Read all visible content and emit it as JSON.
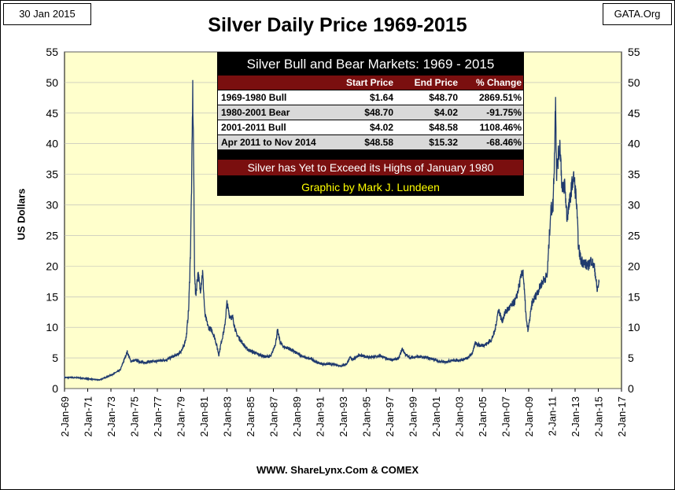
{
  "header": {
    "date": "30 Jan 2015",
    "site": "GATA.Org",
    "title": "Silver Daily Price 1969-2015"
  },
  "footer": {
    "source": "WWW. ShareLynx.Com & COMEX"
  },
  "colors": {
    "plot_bg": "#ffffcc",
    "line": "#1f3a6e",
    "table_header": "#7a0f0f",
    "row_light": "#ffffff",
    "row_gray": "#d9d9d9",
    "credit_text": "#ffff00"
  },
  "table": {
    "title": "Silver Bull and Bear Markets: 1969 - 2015",
    "columns": [
      "",
      "Start Price",
      "End Price",
      "% Change"
    ],
    "rows": [
      [
        "1969-1980 Bull",
        "$1.64",
        "$48.70",
        "2869.51%"
      ],
      [
        "1980-2001 Bear",
        "$48.70",
        "$4.02",
        "-91.75%"
      ],
      [
        "2001-2011 Bull",
        "$4.02",
        "$48.58",
        "1108.46%"
      ],
      [
        "Apr 2011 to Nov 2014",
        "$48.58",
        "$15.32",
        "-68.46%"
      ]
    ],
    "note": "Silver has Yet to Exceed its Highs of January 1980",
    "credit": "Graphic by Mark J. Lundeen"
  },
  "chart_data": {
    "type": "line",
    "title": "Silver Daily Price 1969-2015",
    "xlabel": "",
    "ylabel": "US Dollars",
    "xlim": [
      1969,
      2017
    ],
    "ylim": [
      0,
      55
    ],
    "y_ticks": [
      0,
      5,
      10,
      15,
      20,
      25,
      30,
      35,
      40,
      45,
      50,
      55
    ],
    "x_tick_labels": [
      "2-Jan-69",
      "2-Jan-71",
      "2-Jan-73",
      "2-Jan-75",
      "2-Jan-77",
      "2-Jan-79",
      "2-Jan-81",
      "2-Jan-83",
      "2-Jan-85",
      "2-Jan-87",
      "2-Jan-89",
      "2-Jan-91",
      "2-Jan-93",
      "2-Jan-95",
      "2-Jan-97",
      "2-Jan-99",
      "2-Jan-01",
      "2-Jan-03",
      "2-Jan-05",
      "2-Jan-07",
      "2-Jan-09",
      "2-Jan-11",
      "2-Jan-13",
      "2-Jan-15",
      "2-Jan-17"
    ],
    "x_tick_years": [
      1969,
      1971,
      1973,
      1975,
      1977,
      1979,
      1981,
      1983,
      1985,
      1987,
      1989,
      1991,
      1993,
      1995,
      1997,
      1999,
      2001,
      2003,
      2005,
      2007,
      2009,
      2011,
      2013,
      2015,
      2017
    ],
    "series": [
      {
        "name": "Silver Daily Price",
        "x": [
          1969.0,
          1970.0,
          1971.0,
          1972.0,
          1972.8,
          1973.3,
          1973.8,
          1974.1,
          1974.4,
          1974.7,
          1975.2,
          1975.8,
          1976.3,
          1976.8,
          1977.3,
          1977.8,
          1978.3,
          1978.8,
          1979.2,
          1979.5,
          1979.7,
          1979.85,
          1979.95,
          1980.05,
          1980.12,
          1980.2,
          1980.3,
          1980.5,
          1980.7,
          1980.9,
          1981.1,
          1981.4,
          1981.7,
          1982.0,
          1982.3,
          1982.5,
          1982.8,
          1983.0,
          1983.2,
          1983.5,
          1983.8,
          1984.2,
          1984.7,
          1985.2,
          1985.7,
          1986.3,
          1986.8,
          1987.2,
          1987.35,
          1987.6,
          1987.9,
          1988.3,
          1988.8,
          1989.3,
          1989.8,
          1990.3,
          1990.8,
          1991.3,
          1991.8,
          1992.3,
          1992.8,
          1993.3,
          1993.6,
          1993.9,
          1994.3,
          1994.8,
          1995.3,
          1995.8,
          1996.3,
          1996.8,
          1997.3,
          1997.8,
          1998.1,
          1998.4,
          1998.8,
          1999.3,
          1999.8,
          2000.3,
          2000.8,
          2001.3,
          2001.8,
          2002.3,
          2002.8,
          2003.3,
          2003.8,
          2004.2,
          2004.4,
          2004.8,
          2005.3,
          2005.8,
          2006.1,
          2006.4,
          2006.7,
          2007.0,
          2007.5,
          2007.9,
          2008.2,
          2008.5,
          2008.8,
          2008.95,
          2009.3,
          2009.7,
          2010.2,
          2010.6,
          2010.9,
          2011.1,
          2011.25,
          2011.32,
          2011.4,
          2011.5,
          2011.7,
          2011.9,
          2012.1,
          2012.3,
          2012.5,
          2012.7,
          2012.9,
          2013.1,
          2013.3,
          2013.5,
          2013.8,
          2014.1,
          2014.4,
          2014.7,
          2014.9,
          2015.08
        ],
        "y": [
          1.8,
          1.8,
          1.6,
          1.4,
          2.0,
          2.5,
          3.0,
          4.5,
          6.0,
          4.5,
          4.6,
          4.2,
          4.4,
          4.4,
          4.6,
          4.7,
          5.2,
          5.6,
          6.5,
          8.5,
          13.0,
          22.0,
          33.0,
          48.7,
          39.0,
          20.0,
          15.0,
          19.0,
          16.0,
          19.0,
          12.0,
          10.0,
          9.5,
          8.0,
          5.5,
          7.5,
          10.0,
          14.0,
          12.0,
          11.5,
          9.0,
          7.8,
          6.5,
          6.0,
          5.6,
          5.2,
          5.3,
          7.5,
          9.5,
          7.5,
          6.8,
          6.6,
          6.0,
          5.5,
          5.0,
          4.8,
          4.2,
          4.0,
          4.0,
          3.9,
          3.7,
          4.0,
          5.0,
          4.8,
          5.4,
          5.3,
          5.1,
          5.2,
          5.3,
          4.8,
          4.7,
          4.9,
          6.5,
          5.5,
          5.0,
          5.2,
          5.1,
          5.0,
          4.8,
          4.4,
          4.3,
          4.6,
          4.6,
          4.7,
          5.0,
          6.0,
          7.5,
          7.0,
          7.2,
          8.0,
          9.5,
          13.0,
          11.0,
          12.5,
          13.5,
          14.5,
          17.0,
          19.5,
          11.0,
          9.5,
          14.0,
          15.5,
          17.5,
          18.5,
          29.0,
          30.0,
          40.0,
          48.6,
          35.0,
          37.0,
          40.0,
          32.0,
          33.5,
          28.0,
          30.0,
          33.0,
          34.5,
          31.0,
          23.0,
          21.0,
          20.5,
          20.0,
          21.0,
          19.5,
          16.0,
          17.5
        ]
      }
    ]
  }
}
